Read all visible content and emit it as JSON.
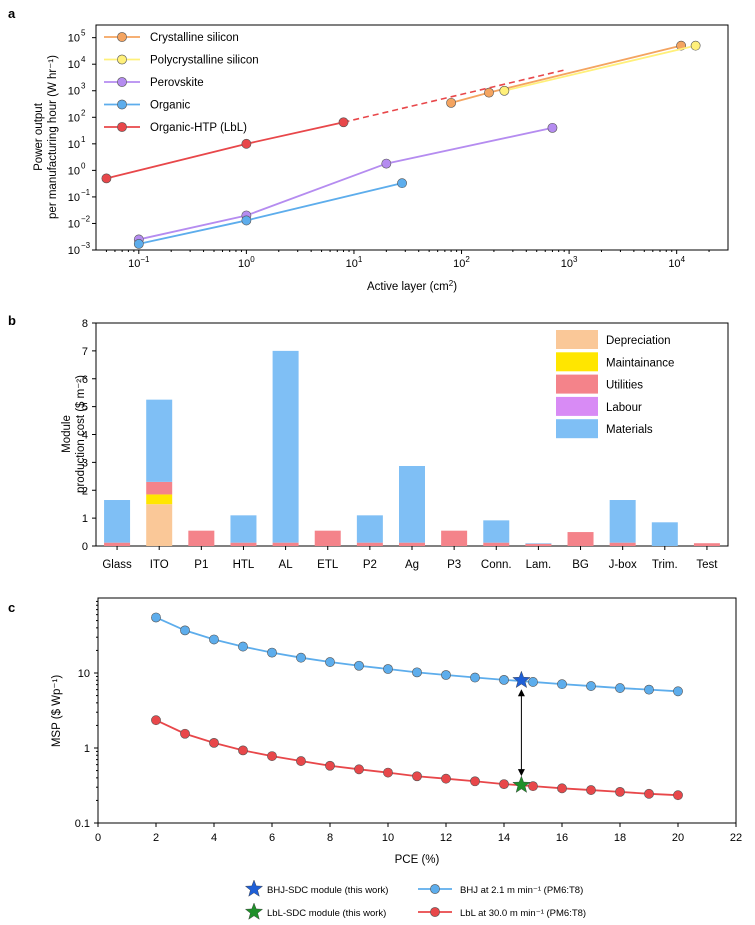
{
  "colors": {
    "crystalline": "#F4A460",
    "polycrystalline": "#FFF07A",
    "perovskite": "#B58CF0",
    "organic": "#5DADEC",
    "organic_htp": "#E8474A",
    "depreciation": "#FAC898",
    "maintainance": "#FFE600",
    "utilities": "#F4838A",
    "labour": "#D88BF5",
    "materials": "#7FBFF5",
    "star_bhj": "#1F5FD6",
    "star_lbl": "#1F8F2A"
  },
  "chart_data": [
    {
      "panel": "a",
      "type": "line",
      "xscale": "log",
      "yscale": "log",
      "xlabel": "Active layer (cm²)",
      "ylabel_lines": [
        "Power output",
        "per manufacturing hour (W hr⁻¹)"
      ],
      "xlim": [
        0.04,
        30000
      ],
      "ylim": [
        0.001,
        300000
      ],
      "x_ticks": [
        0.1,
        1,
        10,
        100,
        1000,
        10000
      ],
      "x_tick_labels": [
        {
          "b": "10",
          "e": "−1"
        },
        {
          "b": "10",
          "e": "0"
        },
        {
          "b": "10",
          "e": "1"
        },
        {
          "b": "10",
          "e": "2"
        },
        {
          "b": "10",
          "e": "3"
        },
        {
          "b": "10",
          "e": "4"
        }
      ],
      "y_ticks": [
        0.001,
        0.01,
        0.1,
        1,
        10,
        100,
        1000,
        10000,
        100000
      ],
      "y_tick_labels": [
        {
          "b": "10",
          "e": "−3"
        },
        {
          "b": "10",
          "e": "−2"
        },
        {
          "b": "10",
          "e": "−1"
        },
        {
          "b": "10",
          "e": "0"
        },
        {
          "b": "10",
          "e": "1"
        },
        {
          "b": "10",
          "e": "2"
        },
        {
          "b": "10",
          "e": "3"
        },
        {
          "b": "10",
          "e": "4"
        },
        {
          "b": "10",
          "e": "5"
        }
      ],
      "series": [
        {
          "name": "Crystalline silicon",
          "color_key": "crystalline",
          "x": [
            80,
            180,
            11000
          ],
          "y": [
            350,
            850,
            50000
          ]
        },
        {
          "name": "Polycrystalline silicon",
          "color_key": "polycrystalline",
          "x": [
            250,
            15000
          ],
          "y": [
            1000,
            50000
          ]
        },
        {
          "name": "Perovskite",
          "color_key": "perovskite",
          "x": [
            0.1,
            1,
            20,
            700
          ],
          "y": [
            0.0025,
            0.02,
            1.8,
            40
          ]
        },
        {
          "name": "Organic",
          "color_key": "organic",
          "x": [
            0.1,
            1,
            28
          ],
          "y": [
            0.0017,
            0.013,
            0.33
          ]
        },
        {
          "name": "Organic-HTP (LbL)",
          "color_key": "organic_htp",
          "x": [
            0.05,
            1,
            8
          ],
          "y": [
            0.5,
            10,
            65
          ],
          "dashed_extension": {
            "x": [
              8,
              900
            ],
            "y": [
              65,
              6000
            ]
          }
        }
      ]
    },
    {
      "panel": "b",
      "type": "bar",
      "stacked": true,
      "ylabel_lines": [
        "Module",
        "production cost ($ m⁻²)"
      ],
      "ylim": [
        0,
        8
      ],
      "y_ticks": [
        0,
        1,
        2,
        3,
        4,
        5,
        6,
        7,
        8
      ],
      "categories": [
        "Glass",
        "ITO",
        "P1",
        "HTL",
        "AL",
        "ETL",
        "P2",
        "Ag",
        "P3",
        "Conn.",
        "Lam.",
        "BG",
        "J-box",
        "Trim.",
        "Test"
      ],
      "series": [
        {
          "name": "Depreciation",
          "color_key": "depreciation",
          "values": [
            0,
            1.5,
            0,
            0,
            0,
            0,
            0,
            0,
            0,
            0,
            0,
            0,
            0,
            0,
            0
          ]
        },
        {
          "name": "Maintainance",
          "color_key": "maintainance",
          "values": [
            0,
            0.35,
            0,
            0,
            0,
            0,
            0,
            0,
            0,
            0,
            0,
            0,
            0,
            0,
            0
          ]
        },
        {
          "name": "Utilities",
          "color_key": "utilities",
          "values": [
            0.12,
            0.45,
            0.55,
            0.12,
            0.12,
            0.55,
            0.12,
            0.12,
            0.55,
            0.12,
            0.08,
            0.5,
            0.12,
            0,
            0.1
          ]
        },
        {
          "name": "Labour",
          "color_key": "labour",
          "values": [
            0,
            0,
            0,
            0,
            0,
            0,
            0,
            0,
            0,
            0,
            0,
            0,
            0,
            0,
            0
          ]
        },
        {
          "name": "Materials",
          "color_key": "materials",
          "values": [
            1.53,
            2.95,
            0,
            0.98,
            6.88,
            0,
            0.98,
            2.75,
            0,
            0.8,
            0.02,
            0,
            1.53,
            0.85,
            0
          ]
        }
      ],
      "legend_position": "top-right"
    },
    {
      "panel": "c",
      "type": "line",
      "yscale": "log",
      "xlabel": "PCE (%)",
      "ylabel": "MSP ($ Wp⁻¹)",
      "xlim": [
        0,
        22
      ],
      "ylim": [
        0.1,
        100
      ],
      "x_ticks": [
        0,
        2,
        4,
        6,
        8,
        10,
        12,
        14,
        16,
        18,
        20,
        22
      ],
      "y_ticks": [
        0.1,
        1,
        10
      ],
      "y_tick_labels": [
        "0.1",
        "1",
        "10"
      ],
      "series": [
        {
          "name": "BHJ at 2.1 m min⁻¹ (PM6:T8)",
          "color_key": "organic",
          "x": [
            2,
            3,
            4,
            5,
            6,
            7,
            8,
            9,
            10,
            11,
            12,
            13,
            14,
            15,
            16,
            17,
            18,
            19,
            20
          ],
          "y": [
            55,
            37,
            28,
            22.5,
            18.7,
            16,
            14,
            12.5,
            11.3,
            10.2,
            9.4,
            8.7,
            8.1,
            7.6,
            7.1,
            6.7,
            6.3,
            6,
            5.7
          ]
        },
        {
          "name": "LbL at 30.0 m min⁻¹ (PM6:T8)",
          "color_key": "organic_htp",
          "x": [
            2,
            3,
            4,
            5,
            6,
            7,
            8,
            9,
            10,
            11,
            12,
            13,
            14,
            15,
            16,
            17,
            18,
            19,
            20
          ],
          "y": [
            2.35,
            1.55,
            1.17,
            0.93,
            0.78,
            0.67,
            0.58,
            0.52,
            0.47,
            0.42,
            0.39,
            0.36,
            0.33,
            0.31,
            0.29,
            0.275,
            0.26,
            0.245,
            0.235
          ]
        }
      ],
      "stars": [
        {
          "name": "BHJ-SDC module (this work)",
          "color_key": "star_bhj",
          "x": 14.6,
          "y": 8.0
        },
        {
          "name": "LbL-SDC module (this work)",
          "color_key": "star_lbl",
          "x": 14.6,
          "y": 0.32
        }
      ],
      "legend_position": "bottom"
    }
  ],
  "panel_labels": [
    "a",
    "b",
    "c"
  ]
}
